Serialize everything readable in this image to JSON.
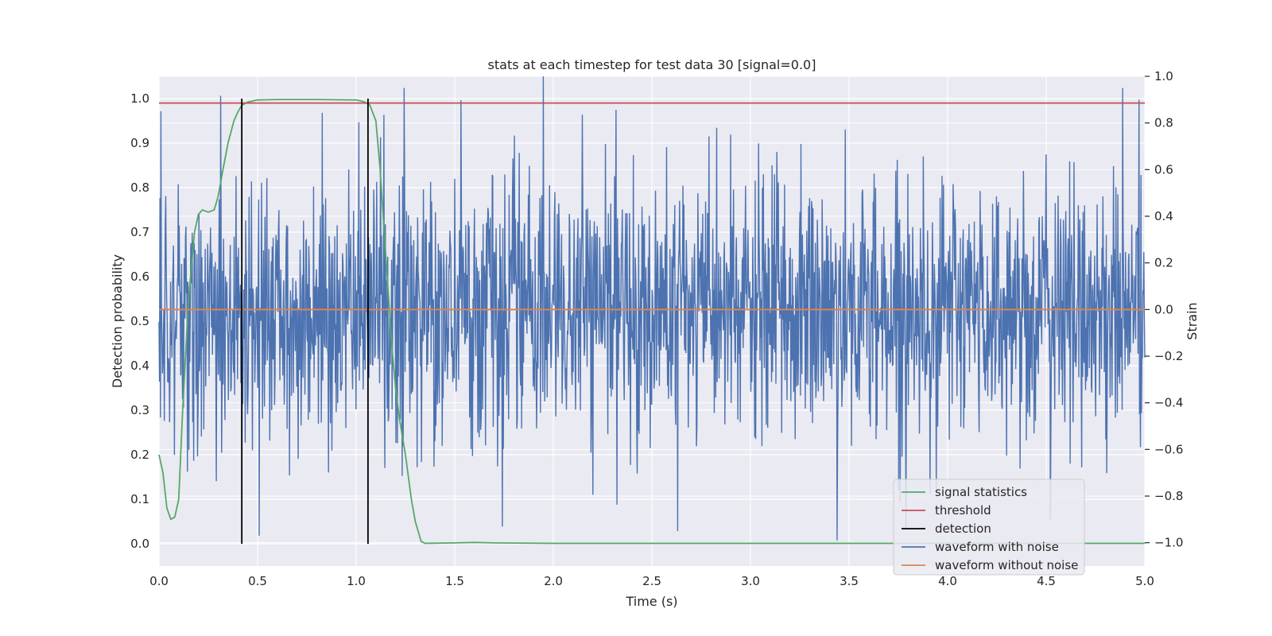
{
  "chart_data": {
    "type": "line",
    "title": "stats at each timestep for test data 30 [signal=0.0]",
    "xlabel": "Time (s)",
    "ylabel": "Detection probability",
    "y2label": "Strain",
    "xlim": [
      0.0,
      5.0
    ],
    "ylim": [
      -0.05,
      1.05
    ],
    "y2lim": [
      -1.1,
      1.0
    ],
    "x_ticks": [
      0.0,
      0.5,
      1.0,
      1.5,
      2.0,
      2.5,
      3.0,
      3.5,
      4.0,
      4.5,
      5.0
    ],
    "x_tick_labels": [
      "0.0",
      "0.5",
      "1.0",
      "1.5",
      "2.0",
      "2.5",
      "3.0",
      "3.5",
      "4.0",
      "4.5",
      "5.0"
    ],
    "y_ticks": [
      0.0,
      0.1,
      0.2,
      0.3,
      0.4,
      0.5,
      0.6,
      0.7,
      0.8,
      0.9,
      1.0
    ],
    "y_tick_labels": [
      "0.0",
      "0.1",
      "0.2",
      "0.3",
      "0.4",
      "0.5",
      "0.6",
      "0.7",
      "0.8",
      "0.9",
      "1.0"
    ],
    "y2_ticks": [
      -1.0,
      -0.8,
      -0.6,
      -0.4,
      -0.2,
      0.0,
      0.2,
      0.4,
      0.6,
      0.8,
      1.0
    ],
    "y2_tick_labels": [
      "−1.0",
      "−0.8",
      "−0.6",
      "−0.4",
      "−0.2",
      "0.0",
      "0.2",
      "0.4",
      "0.6",
      "0.8",
      "1.0"
    ],
    "grid": true,
    "legend_position": "lower-right",
    "colors": {
      "plot_bg": "#eaeaf2",
      "grid": "#ffffff",
      "signal_statistics": "#55a868",
      "threshold": "#c44e52",
      "detection": "#000000",
      "waveform_noise": "#4c72b0",
      "waveform_clean": "#dd8452",
      "text": "#262626"
    },
    "series": [
      {
        "name": "signal statistics",
        "axis": "left",
        "x": [
          0.0,
          0.02,
          0.04,
          0.06,
          0.08,
          0.1,
          0.12,
          0.15,
          0.18,
          0.2,
          0.22,
          0.25,
          0.28,
          0.3,
          0.32,
          0.35,
          0.38,
          0.4,
          0.42,
          0.45,
          0.48,
          0.5,
          0.6,
          0.8,
          1.0,
          1.04,
          1.07,
          1.1,
          1.12,
          1.15,
          1.18,
          1.2,
          1.22,
          1.25,
          1.28,
          1.3,
          1.33,
          1.35,
          1.5,
          1.6,
          1.7,
          2.0,
          3.0,
          4.0,
          5.0
        ],
        "values": [
          0.2,
          0.16,
          0.08,
          0.055,
          0.06,
          0.1,
          0.3,
          0.55,
          0.7,
          0.74,
          0.75,
          0.745,
          0.75,
          0.78,
          0.83,
          0.9,
          0.95,
          0.97,
          0.985,
          0.992,
          0.995,
          0.997,
          0.998,
          0.998,
          0.997,
          0.993,
          0.985,
          0.95,
          0.85,
          0.65,
          0.45,
          0.35,
          0.28,
          0.2,
          0.1,
          0.05,
          0.005,
          0.001,
          0.002,
          0.003,
          0.002,
          0.001,
          0.001,
          0.001,
          0.001
        ]
      },
      {
        "name": "threshold",
        "axis": "left",
        "x": [
          0.0,
          5.0
        ],
        "values": [
          0.99,
          0.99
        ]
      },
      {
        "name": "detection",
        "axis": "left",
        "x": [
          0.42,
          1.06
        ],
        "values": [
          1.0,
          1.0
        ]
      },
      {
        "name": "waveform with noise",
        "axis": "right",
        "x_range": [
          0.0,
          5.0
        ],
        "n_samples": 2048,
        "amplitude_typical": 0.45,
        "extremes": [
          {
            "x": 1.95,
            "y": 1.0
          },
          {
            "x": 3.44,
            "y": -0.99
          },
          {
            "x": 4.97,
            "y": 0.9
          },
          {
            "x": 0.01,
            "y": 0.85
          },
          {
            "x": 2.63,
            "y": -0.95
          }
        ]
      },
      {
        "name": "waveform without noise",
        "axis": "right",
        "x": [
          0.0,
          5.0
        ],
        "values": [
          0.0,
          0.0
        ]
      }
    ],
    "legend": [
      "signal statistics",
      "threshold",
      "detection",
      "waveform with noise",
      "waveform without noise"
    ]
  }
}
